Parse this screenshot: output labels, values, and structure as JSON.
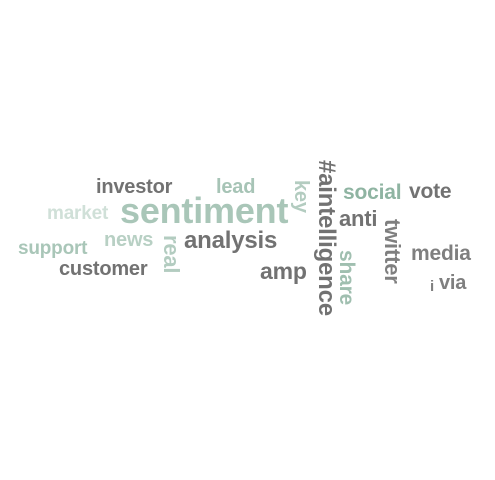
{
  "colors": {
    "background": "#ffffff",
    "dark_gray": "#727272",
    "medium_gray": "#7f7f7f",
    "sage_green": "#8fb4a2",
    "light_sage": "#b8d0c4",
    "pale_sage": "#cfe0d7"
  },
  "words": {
    "investor": "investor",
    "lead": "lead",
    "market": "market",
    "sentiment": "sentiment",
    "key": "key",
    "aintelligence": "#aintelligence",
    "social": "social",
    "vote": "vote",
    "anti": "anti",
    "news": "news",
    "real": "real",
    "analysis": "analysis",
    "twitter": "twitter",
    "support": "support",
    "media": "media",
    "customer": "customer",
    "amp": "amp",
    "share": "share",
    "i": "i",
    "via": "via"
  }
}
